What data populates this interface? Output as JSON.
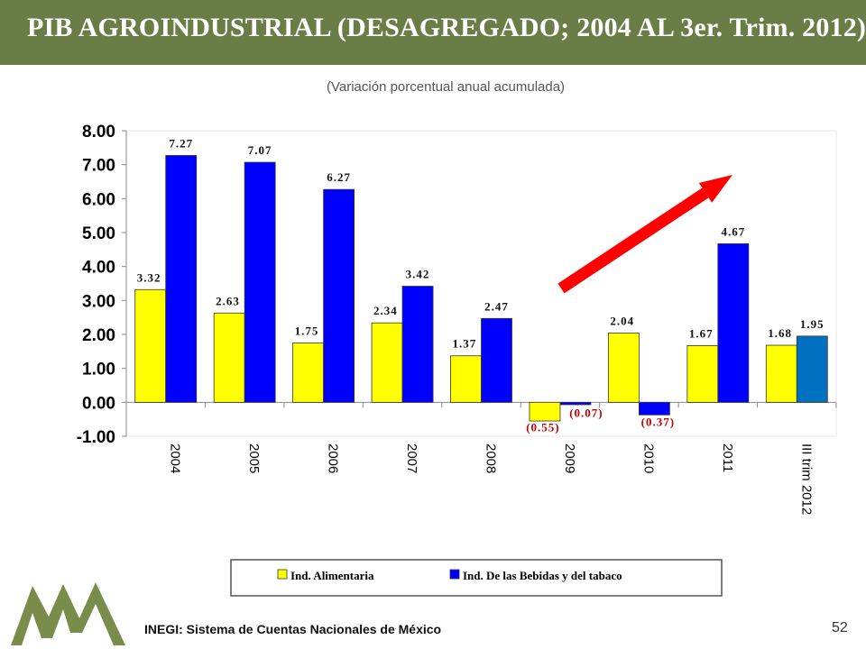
{
  "header": {
    "title": "PIB AGROINDUSTRIAL  (DESAGREGADO; 2004 AL 3er. Trim. 2012)",
    "subtitle": "(Variación porcentual anual acumulada)"
  },
  "footer": {
    "source": "INEGI: Sistema de Cuentas Nacionales de México",
    "page_number": "52"
  },
  "colors": {
    "title_bar": "#6b7d46",
    "series_1": "#ffff00",
    "series_2": "#0000ff",
    "series_2_last": "#0070c0",
    "label_positive": "#111111",
    "label_negative": "#c00000",
    "arrow": "#ff0000",
    "logo": "#7a8c4a"
  },
  "logo_icon": "mountains-logo-icon",
  "chart_data": {
    "type": "bar",
    "categories": [
      "2004",
      "2005",
      "2006",
      "2007",
      "2008",
      "2009",
      "2010",
      "2011",
      "III trim 2012"
    ],
    "series": [
      {
        "name": "Ind. Alimentaria",
        "values": [
          3.32,
          2.63,
          1.75,
          2.34,
          1.37,
          -0.55,
          2.04,
          1.67,
          1.68
        ],
        "labels": [
          "3.32",
          "2.63",
          "1.75",
          "2.34",
          "1.37",
          "(0.55)",
          "2.04",
          "1.67",
          "1.68"
        ]
      },
      {
        "name": "Ind. De las Bebidas y del tabaco",
        "values": [
          7.27,
          7.07,
          6.27,
          3.42,
          2.47,
          -0.07,
          -0.37,
          4.67,
          1.95
        ],
        "labels": [
          "7.27",
          "7.07",
          "6.27",
          "3.42",
          "2.47",
          "(0.07)",
          "(0.37)",
          "4.67",
          "1.95"
        ]
      }
    ],
    "y_ticks": [
      "8.00",
      "7.00",
      "6.00",
      "5.00",
      "4.00",
      "3.00",
      "2.00",
      "1.00",
      "0.00",
      "-1.00"
    ],
    "ylim": [
      -1,
      8
    ],
    "grid": false,
    "legend_position": "bottom",
    "annotation": "upward red arrow from 2009 to 2011"
  }
}
